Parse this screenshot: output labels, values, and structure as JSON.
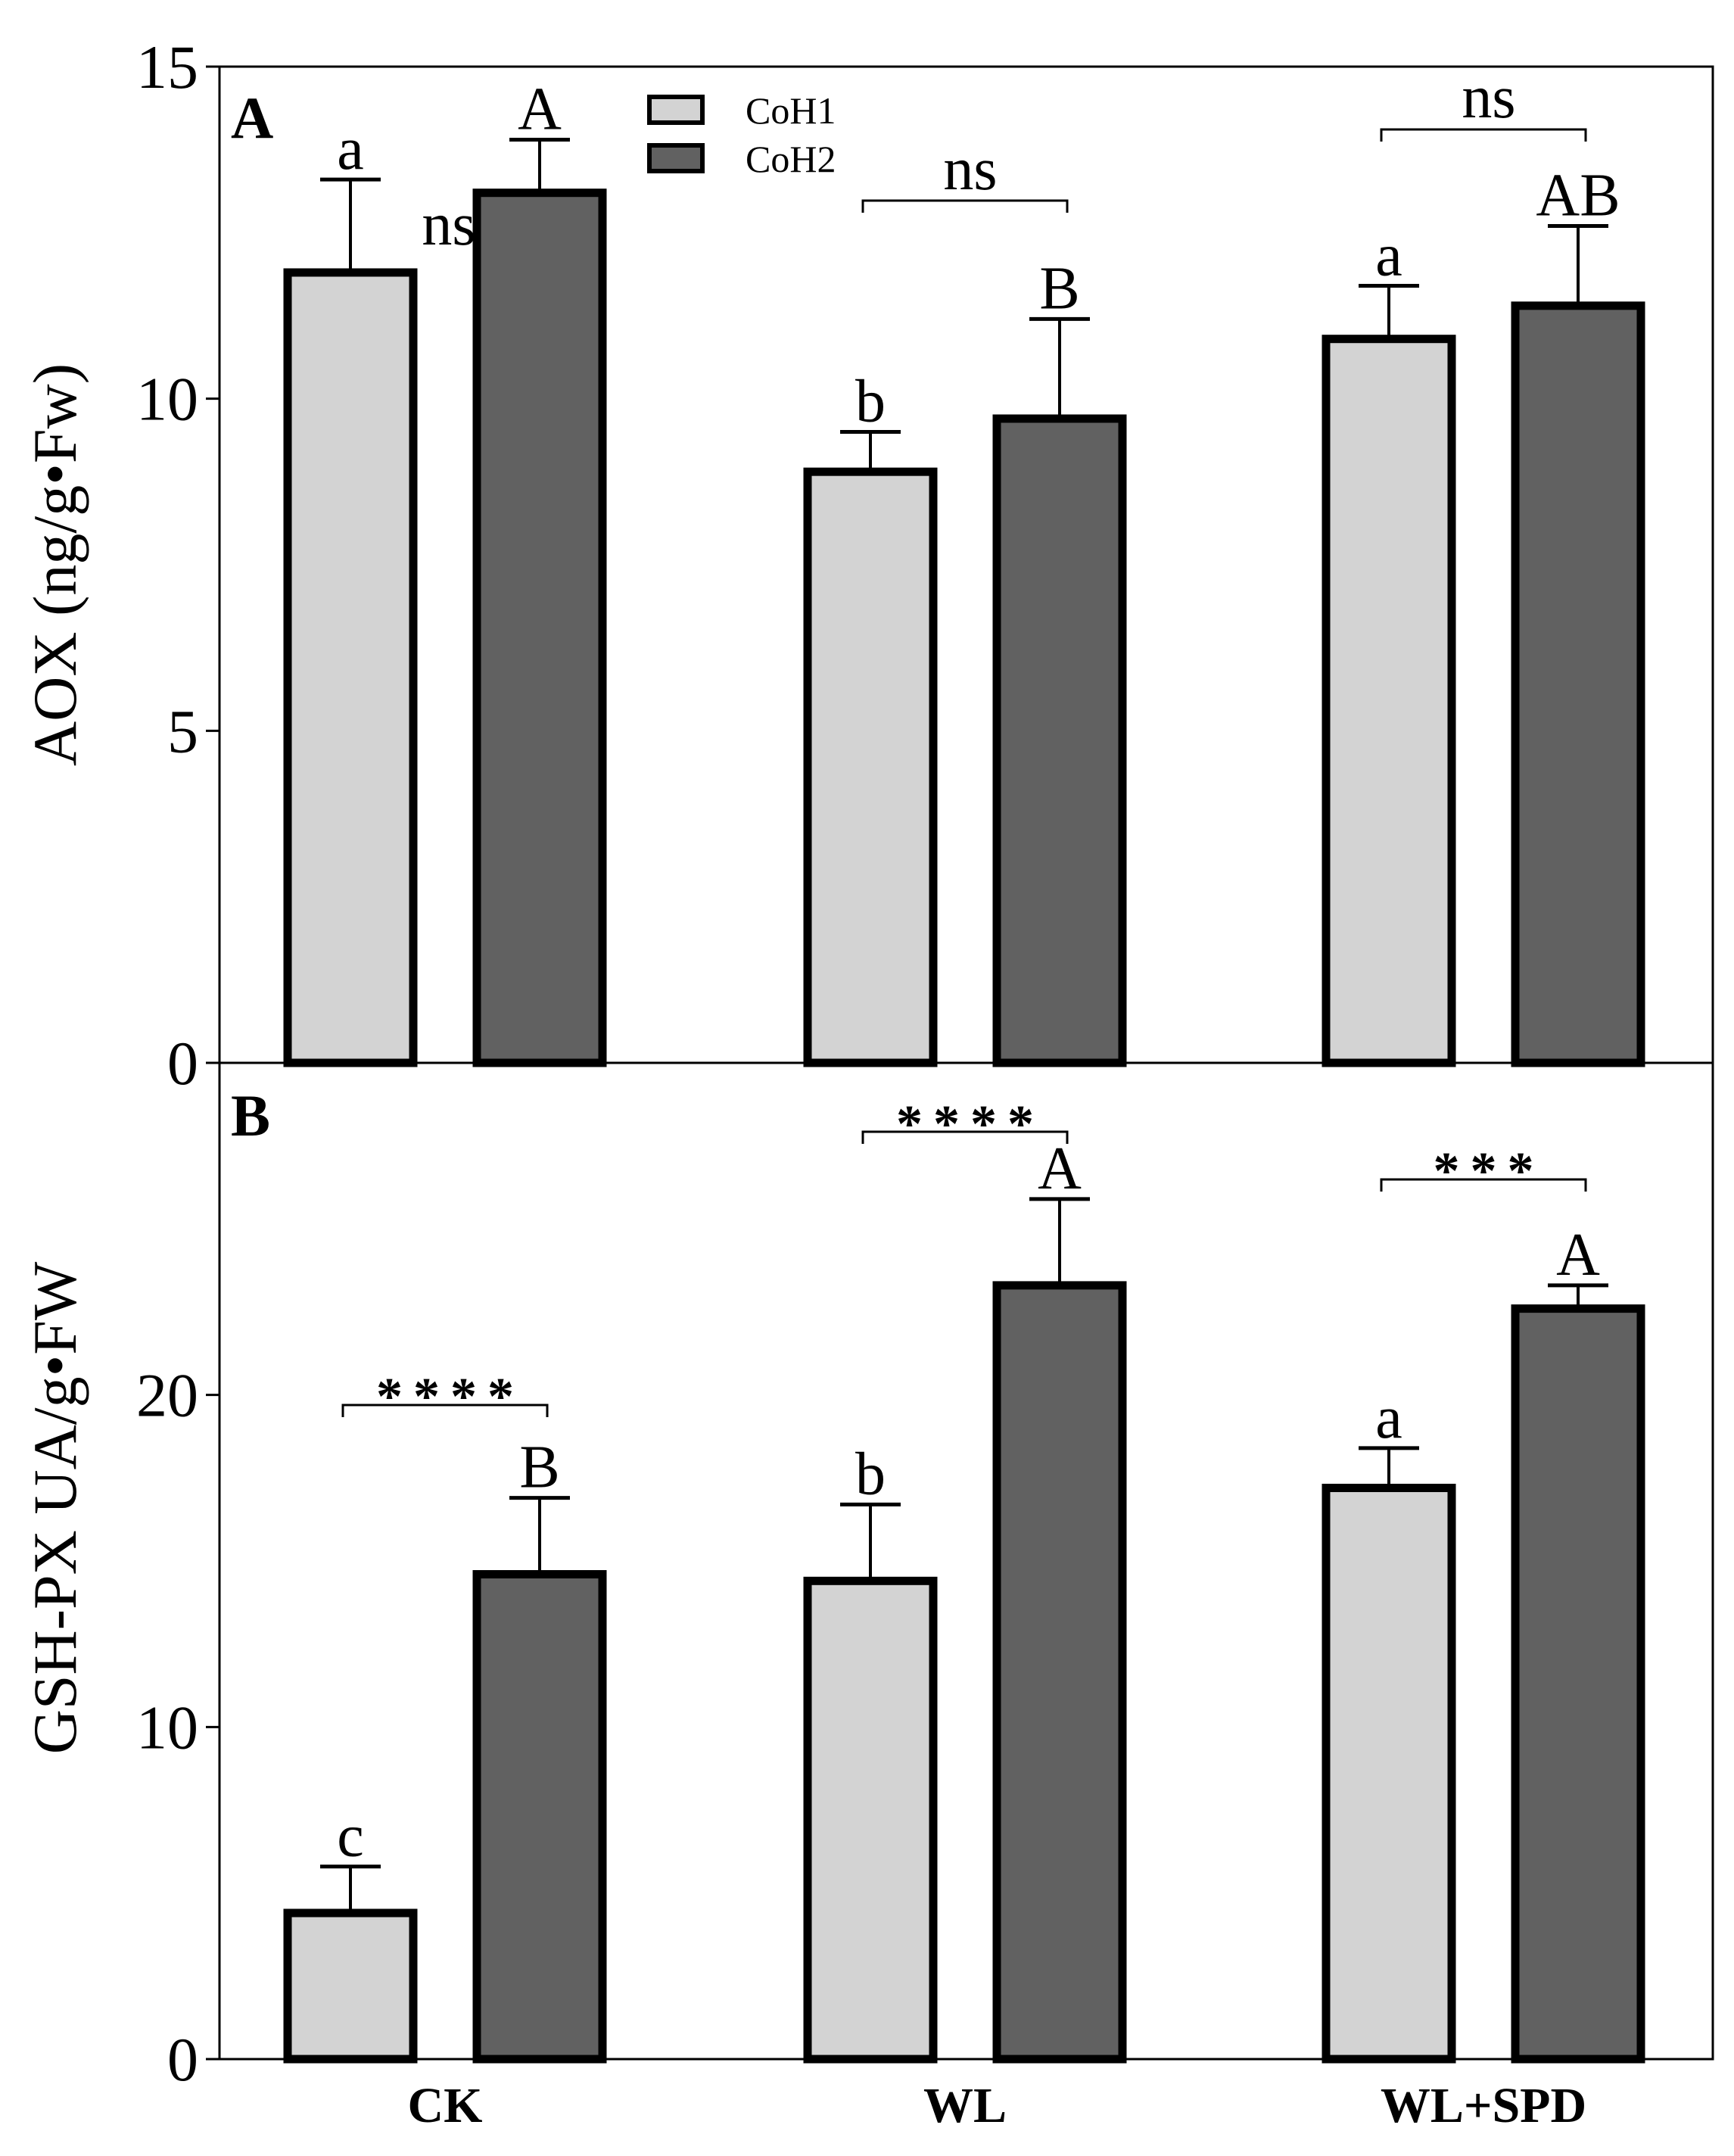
{
  "chart_data": [
    {
      "type": "bar",
      "panel_label": "A",
      "ylabel": "AOX (ng/g•Fw)",
      "ylim": [
        0,
        15
      ],
      "yticks": [
        0,
        5,
        10,
        15
      ],
      "categories": [
        "CK",
        "WL",
        "WL+SPD"
      ],
      "series": [
        {
          "name": "CoH1",
          "color": "#d3d3d3",
          "values": [
            11.9,
            8.9,
            10.9
          ],
          "errors": [
            1.4,
            0.6,
            0.8
          ]
        },
        {
          "name": "CoH2",
          "color": "#616161",
          "values": [
            13.1,
            9.7,
            11.4
          ],
          "errors": [
            0.8,
            1.5,
            1.2
          ]
        }
      ],
      "letters": {
        "CoH1": [
          "a",
          "b",
          "a"
        ],
        "CoH2": [
          "A",
          "B",
          "AB"
        ]
      },
      "significance": [
        "ns",
        "ns",
        "ns"
      ]
    },
    {
      "type": "bar",
      "panel_label": "B",
      "ylabel": "GSH-PX UA/g•FW",
      "ylim": [
        0,
        30
      ],
      "yticks": [
        0,
        10,
        20
      ],
      "categories": [
        "CK",
        "WL",
        "WL+SPD"
      ],
      "series": [
        {
          "name": "CoH1",
          "color": "#d3d3d3",
          "values": [
            4.4,
            14.4,
            17.2
          ],
          "errors": [
            1.4,
            2.3,
            1.2
          ]
        },
        {
          "name": "CoH2",
          "color": "#616161",
          "values": [
            14.6,
            23.3,
            22.6
          ],
          "errors": [
            2.3,
            2.6,
            0.7
          ]
        }
      ],
      "letters": {
        "CoH1": [
          "c",
          "b",
          "a"
        ],
        "CoH2": [
          "B",
          "A",
          "A"
        ]
      },
      "significance": [
        "****",
        "****",
        "***"
      ]
    }
  ],
  "legend": [
    {
      "name": "CoH1",
      "color": "#d3d3d3"
    },
    {
      "name": "CoH2",
      "color": "#616161"
    }
  ]
}
